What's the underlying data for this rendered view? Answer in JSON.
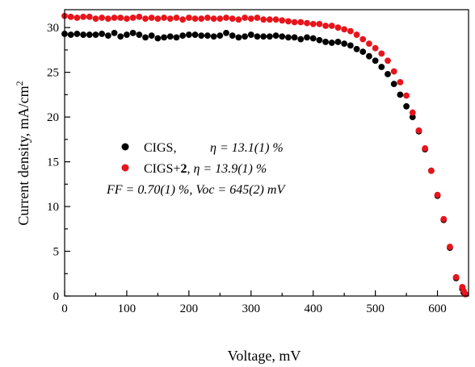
{
  "chart_data": {
    "type": "scatter",
    "xlabel": "Voltage, mV",
    "ylabel": "Current density, mA/cm",
    "ylabel_superscript": "2",
    "xlim": [
      0,
      650
    ],
    "ylim": [
      0,
      32
    ],
    "xticks": [
      0,
      100,
      200,
      300,
      400,
      500,
      600
    ],
    "yticks": [
      0,
      5,
      10,
      15,
      20,
      25,
      30
    ],
    "grid": false,
    "legend_position": "center-left",
    "colors": {
      "CIGS": "#000000",
      "CIGS+2": "#e8141b"
    },
    "series": [
      {
        "name": "CIGS",
        "eta": "η = 13.1(1) %",
        "x": [
          0,
          10,
          20,
          30,
          40,
          50,
          60,
          70,
          80,
          90,
          100,
          110,
          120,
          130,
          140,
          150,
          160,
          170,
          180,
          190,
          200,
          210,
          220,
          230,
          240,
          250,
          260,
          270,
          280,
          290,
          300,
          310,
          320,
          330,
          340,
          350,
          360,
          370,
          380,
          390,
          400,
          410,
          420,
          430,
          440,
          450,
          460,
          470,
          480,
          490,
          500,
          510,
          520,
          530,
          540,
          550,
          560,
          570,
          580,
          590,
          600,
          610,
          620,
          630,
          640,
          642,
          645
        ],
        "y": [
          29.3,
          29.2,
          29.3,
          29.2,
          29.2,
          29.2,
          29.3,
          29.1,
          29.4,
          29.0,
          29.2,
          29.4,
          29.2,
          28.9,
          29.1,
          28.8,
          28.9,
          29.0,
          28.9,
          29.1,
          29.2,
          29.2,
          29.1,
          29.1,
          29.0,
          29.1,
          29.4,
          29.1,
          28.9,
          29.0,
          29.2,
          29.0,
          29.0,
          29.0,
          29.1,
          29.0,
          28.9,
          28.9,
          28.7,
          28.9,
          28.8,
          28.6,
          28.4,
          28.3,
          28.4,
          28.2,
          28.0,
          27.6,
          27.3,
          26.8,
          26.3,
          25.6,
          24.8,
          23.7,
          22.5,
          21.2,
          20.0,
          18.4,
          16.4,
          14.0,
          11.2,
          8.5,
          5.4,
          2.0,
          0.8,
          0.4,
          0.2
        ]
      },
      {
        "name": "CIGS+2",
        "eta": "η = 13.9(1) %",
        "x": [
          0,
          10,
          20,
          30,
          40,
          50,
          60,
          70,
          80,
          90,
          100,
          110,
          120,
          130,
          140,
          150,
          160,
          170,
          180,
          190,
          200,
          210,
          220,
          230,
          240,
          250,
          260,
          270,
          280,
          290,
          300,
          310,
          320,
          330,
          340,
          350,
          360,
          370,
          380,
          390,
          400,
          410,
          420,
          430,
          440,
          450,
          460,
          470,
          480,
          490,
          500,
          510,
          520,
          530,
          540,
          550,
          560,
          570,
          580,
          590,
          600,
          610,
          620,
          630,
          640,
          642,
          645
        ],
        "y": [
          31.3,
          31.2,
          31.1,
          31.2,
          31.2,
          31.0,
          31.1,
          31.0,
          31.1,
          31.1,
          31.0,
          31.1,
          31.2,
          31.0,
          31.1,
          31.0,
          31.1,
          31.0,
          31.1,
          30.9,
          31.1,
          31.0,
          31.0,
          31.1,
          31.0,
          31.0,
          31.1,
          31.0,
          30.9,
          31.1,
          31.0,
          31.1,
          30.9,
          30.9,
          30.9,
          30.8,
          30.7,
          30.6,
          30.6,
          30.5,
          30.4,
          30.4,
          30.2,
          30.2,
          30.0,
          29.8,
          29.6,
          29.2,
          28.7,
          28.2,
          27.7,
          27.1,
          26.3,
          25.1,
          23.9,
          22.4,
          20.5,
          18.5,
          16.5,
          14.0,
          11.3,
          8.6,
          5.5,
          2.1,
          1.0,
          0.6,
          0.2
        ]
      }
    ],
    "annotation": "FF = 0.70(1) %, Voc = 645(2) mV"
  }
}
